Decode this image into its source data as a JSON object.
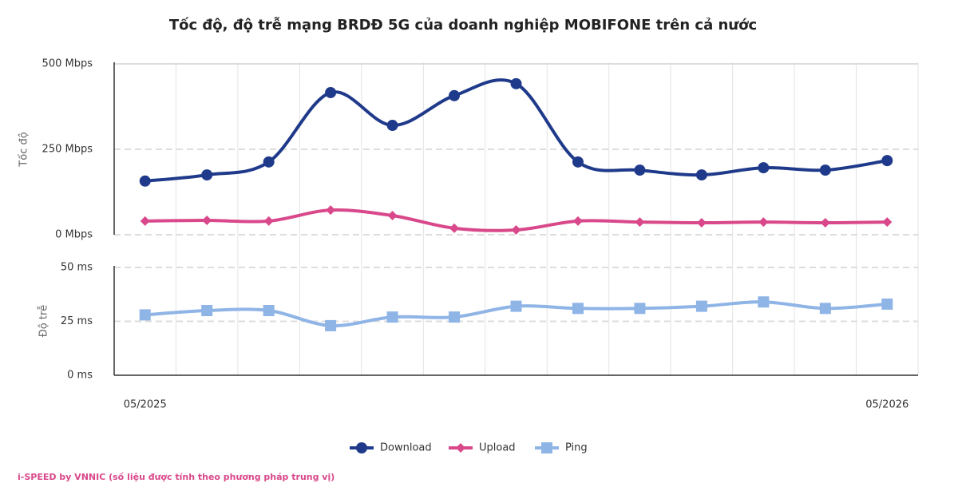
{
  "chart_data": {
    "type": "line",
    "title": "Tốc độ, độ trễ mạng BRDĐ 5G của doanh nghiệp MOBIFONE trên cả nước",
    "ylabel": "Tốc độ",
    "y2label": "Độ trễ",
    "categories": [
      "05/2025",
      null,
      null,
      null,
      null,
      null,
      null,
      null,
      null,
      null,
      null,
      null,
      "05/2026"
    ],
    "ylim": [
      0,
      500
    ],
    "yticks": [
      {
        "value": 0,
        "label": "0 Mbps"
      },
      {
        "value": 250,
        "label": "250 Mbps"
      },
      {
        "value": 500,
        "label": "500 Mbps"
      }
    ],
    "y2lim": [
      0,
      50
    ],
    "y2ticks": [
      {
        "value": 0,
        "label": "0 ms"
      },
      {
        "value": 25,
        "label": "25 ms"
      },
      {
        "value": 50,
        "label": "50 ms"
      }
    ],
    "grid": true,
    "legend": "bottom",
    "series": [
      {
        "name": "Download",
        "color": "#1f3a8a",
        "marker": "circle",
        "values": [
          157,
          175,
          213,
          416,
          320,
          407,
          442,
          213,
          189,
          175,
          196,
          189,
          217
        ]
      },
      {
        "name": "Upload",
        "color": "#d9488a",
        "marker": "diamond",
        "values": [
          40,
          42,
          40,
          72,
          56,
          19,
          14,
          40,
          37,
          35,
          37,
          35,
          37
        ]
      },
      {
        "name": "Ping",
        "color": "#8fb4e6",
        "marker": "square",
        "axis": "y2",
        "values": [
          28,
          30,
          30,
          23,
          27,
          27,
          32,
          31,
          31,
          32,
          34,
          31,
          33
        ]
      }
    ],
    "source": "i-SPEED by VNNIC (số liệu được tính theo phương pháp trung vị)"
  }
}
